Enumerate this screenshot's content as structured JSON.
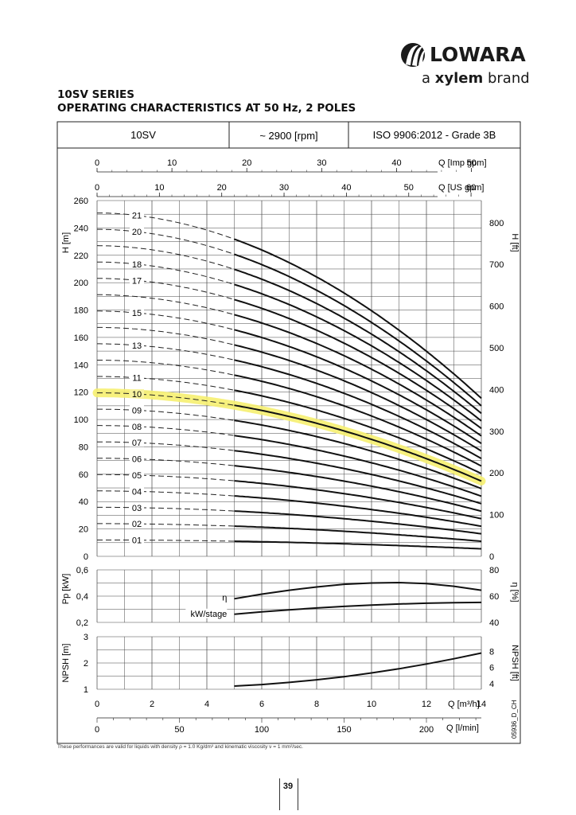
{
  "brand": {
    "logo_icon": "lowara-swirl-logo",
    "name": "LOWARA",
    "tagline_prefix": "a",
    "tagline_brand": "xylem",
    "tagline_suffix": "brand"
  },
  "page": {
    "title_line1": "10SV SERIES",
    "title_line2": "OPERATING CHARACTERISTICS AT 50 Hz, 2 POLES",
    "header_model": "10SV",
    "header_speed": "~ 2900 [rpm]",
    "header_standard": "ISO 9906:2012 - Grade 3B",
    "footnote": "These performances are valid for liquids with density ρ = 1.0 Kg/dm³ and kinematic viscosity ν = 1 mm²/sec.",
    "page_number": "39",
    "drawing_code": "05936_D_CH"
  },
  "chart_data": [
    {
      "type": "line",
      "title": "",
      "xlabel": "Q [m³/h]",
      "ylabel": "H [m]",
      "ylabel_right": "H [ft]",
      "xlim": [
        0,
        14
      ],
      "ylim": [
        0,
        260
      ],
      "x_ticks": [
        0,
        2,
        4,
        6,
        8,
        10,
        12,
        14
      ],
      "y_ticks": [
        0,
        20,
        40,
        60,
        80,
        100,
        120,
        140,
        160,
        180,
        200,
        220,
        240,
        260
      ],
      "y_ticks_right": [
        0,
        100,
        200,
        300,
        400,
        500,
        600,
        700,
        800
      ],
      "top_axis_imp": {
        "label": "Q [Imp gpm]",
        "ticks": [
          0,
          10,
          20,
          30,
          40,
          50
        ]
      },
      "top_axis_us": {
        "label": "Q [US gpm]",
        "ticks": [
          0,
          10,
          20,
          30,
          40,
          50,
          60
        ]
      },
      "bottom_axis_lmin": {
        "label": "Q [l/min]",
        "ticks": [
          0,
          50,
          100,
          150,
          200
        ]
      },
      "grid": true,
      "operating_range_start": 5,
      "highlighted_stage": "10",
      "stage_shutoff_head_per_stage": 11.95,
      "stage_head_per_stage_at_14": 5.5,
      "series": [
        {
          "name": "01",
          "stages": 1
        },
        {
          "name": "02",
          "stages": 2
        },
        {
          "name": "03",
          "stages": 3
        },
        {
          "name": "04",
          "stages": 4
        },
        {
          "name": "05",
          "stages": 5
        },
        {
          "name": "06",
          "stages": 6
        },
        {
          "name": "07",
          "stages": 7
        },
        {
          "name": "08",
          "stages": 8
        },
        {
          "name": "09",
          "stages": 9
        },
        {
          "name": "10",
          "stages": 10
        },
        {
          "name": "11",
          "stages": 11
        },
        {
          "name": "",
          "stages": 12
        },
        {
          "name": "13",
          "stages": 13
        },
        {
          "name": "",
          "stages": 14
        },
        {
          "name": "15",
          "stages": 15
        },
        {
          "name": "",
          "stages": 16
        },
        {
          "name": "17",
          "stages": 17
        },
        {
          "name": "18",
          "stages": 18
        },
        {
          "name": "",
          "stages": 19
        },
        {
          "name": "20",
          "stages": 20
        },
        {
          "name": "21",
          "stages": 21
        }
      ]
    },
    {
      "type": "line",
      "ylabel": "Pp [kW]",
      "ylabel_right": "η [%]",
      "ylim": [
        0.2,
        0.6
      ],
      "y_ticks": [
        "0,2",
        "0,4",
        "0,6"
      ],
      "ylim_right": [
        40,
        80
      ],
      "y_ticks_right": [
        40,
        60,
        80
      ],
      "series": [
        {
          "name": "η",
          "x": [
            5,
            6,
            7,
            8,
            9,
            10,
            11,
            12,
            13,
            14
          ],
          "values": [
            58,
            61.5,
            64.5,
            67,
            69,
            70,
            70.3,
            69.5,
            67.5,
            64.5
          ]
        },
        {
          "name": "kW/stage",
          "x": [
            5,
            6,
            7,
            8,
            9,
            10,
            11,
            12,
            13,
            14
          ],
          "values": [
            0.262,
            0.28,
            0.296,
            0.31,
            0.322,
            0.332,
            0.34,
            0.346,
            0.35,
            0.352
          ]
        }
      ]
    },
    {
      "type": "line",
      "ylabel": "NPSH [m]",
      "ylabel_right": "NPSH [ft]",
      "ylim": [
        1,
        3
      ],
      "y_ticks": [
        1,
        2,
        3
      ],
      "y_ticks_right": [
        4,
        6,
        8
      ],
      "series": [
        {
          "name": "NPSH",
          "x": [
            5,
            6,
            7,
            8,
            9,
            10,
            11,
            12,
            13,
            14
          ],
          "values": [
            1.12,
            1.18,
            1.26,
            1.36,
            1.48,
            1.62,
            1.78,
            1.96,
            2.16,
            2.38
          ]
        }
      ]
    }
  ]
}
